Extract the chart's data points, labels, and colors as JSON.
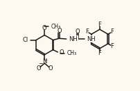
{
  "bg_color": "#fdf8f0",
  "bond_color": "#1a1a1a",
  "bond_lw": 1.1,
  "text_color": "#1a1a1a",
  "font_size": 6.0,
  "font_size_small": 5.5,
  "figsize": [
    2.03,
    1.31
  ],
  "dpi": 100,
  "xlim": [
    0,
    10.2
  ],
  "ylim": [
    0,
    6.6
  ]
}
